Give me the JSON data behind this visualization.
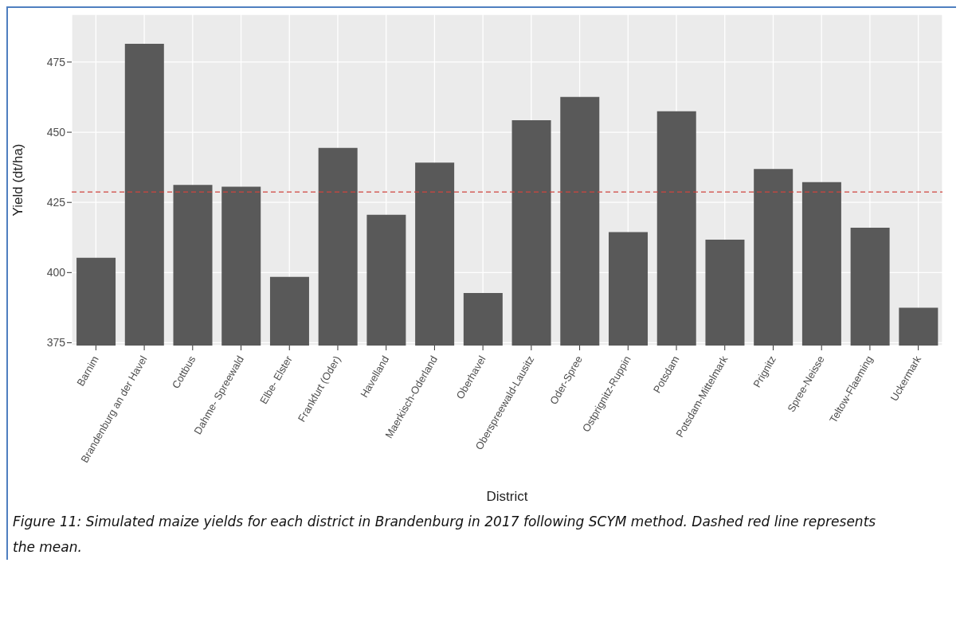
{
  "chart_data": {
    "type": "bar",
    "xlabel": "District",
    "ylabel": "Yield (dt/ha)",
    "categories": [
      "Barnim",
      "Brandenburg an der Havel",
      "Cottbus",
      "Dahme- Spreewald",
      "Elbe- Elster",
      "Frankfurt (Oder)",
      "Havelland",
      "Maerkisch-Oderland",
      "Oberhavel",
      "Oberspreewald-Lausitz",
      "Oder-Spree",
      "Ostprignitz-Ruppin",
      "Potsdam",
      "Potsdam-Mittelmark",
      "Prignitz",
      "Spree-Neisse",
      "Teltow-Flaeming",
      "Uckermark"
    ],
    "values": [
      405.3,
      481.5,
      431.2,
      430.6,
      398.5,
      444.4,
      420.6,
      439.2,
      392.7,
      454.3,
      462.6,
      414.4,
      457.5,
      411.7,
      436.9,
      432.2,
      416.0,
      387.5
    ],
    "color": "#595959",
    "ylim": [
      374,
      492
    ],
    "yticks": [
      375,
      400,
      425,
      450,
      475
    ],
    "grid": true,
    "ref_lines": [
      {
        "axis": "y",
        "value": 428.7,
        "color": "#d0443e",
        "line_style": "dashed"
      }
    ],
    "annotations": [
      "Figure 11: Simulated maize yields for each district in Brandenburg in 2017 following SCYM method. Dashed red line represents the mean."
    ]
  }
}
